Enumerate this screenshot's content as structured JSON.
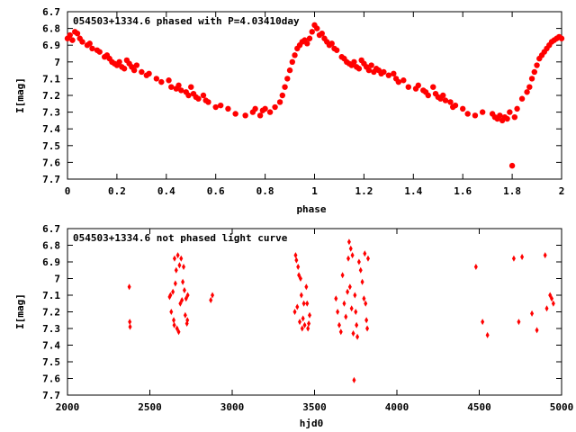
{
  "chart_data": [
    {
      "type": "scatter",
      "title": "054503+1334.6 phased with P=4.03410day",
      "xlabel": "phase",
      "ylabel": "I[mag]",
      "xlim": [
        0,
        2
      ],
      "ylim": [
        6.7,
        7.7
      ],
      "y_inverted": true,
      "grid": false,
      "xticks": [
        "0",
        "0.2",
        "0.4",
        "0.6",
        "0.8",
        "1",
        "1.2",
        "1.4",
        "1.6",
        "1.8",
        "2"
      ],
      "yticks": [
        "6.7",
        "6.8",
        "6.9",
        "7",
        "7.1",
        "7.2",
        "7.3",
        "7.4",
        "7.5",
        "7.6",
        "7.7"
      ],
      "color": "#ff0000",
      "marker": "filled-circle",
      "series": [
        {
          "x": [
            0.0,
            0.01,
            0.02,
            0.03,
            0.04,
            0.05,
            0.06,
            0.08,
            0.09,
            0.1,
            0.12,
            0.13,
            0.15,
            0.16,
            0.17,
            0.18,
            0.19,
            0.2,
            0.21,
            0.22,
            0.23,
            0.24,
            0.25,
            0.26,
            0.27,
            0.28,
            0.3,
            0.32,
            0.33,
            0.36,
            0.38,
            0.41,
            0.42,
            0.44,
            0.45,
            0.46,
            0.48,
            0.49,
            0.5,
            0.51,
            0.52,
            0.53,
            0.55,
            0.56,
            0.57,
            0.6,
            0.62,
            0.65,
            0.68,
            0.72,
            0.75,
            0.76,
            0.78,
            0.79,
            0.8,
            0.82,
            0.84,
            0.86,
            0.87,
            0.88,
            0.89,
            0.9,
            0.91,
            0.92,
            0.93,
            0.94,
            0.95,
            0.96,
            0.97,
            0.98,
            0.99,
            1.0,
            1.01,
            1.02,
            1.03,
            1.04,
            1.05,
            1.06,
            1.07,
            1.08,
            1.09,
            1.11,
            1.12,
            1.13,
            1.14,
            1.15,
            1.16,
            1.17,
            1.18,
            1.19,
            1.2,
            1.21,
            1.22,
            1.23,
            1.24,
            1.25,
            1.26,
            1.27,
            1.28,
            1.3,
            1.32,
            1.33,
            1.34,
            1.36,
            1.38,
            1.41,
            1.42,
            1.44,
            1.45,
            1.46,
            1.48,
            1.49,
            1.5,
            1.51,
            1.52,
            1.53,
            1.55,
            1.56,
            1.57,
            1.6,
            1.62,
            1.65,
            1.68,
            1.72,
            1.73,
            1.74,
            1.75,
            1.76,
            1.77,
            1.78,
            1.79,
            1.8,
            1.81,
            1.82,
            1.84,
            1.86,
            1.87,
            1.88,
            1.89,
            1.9,
            1.91,
            1.92,
            1.93,
            1.94,
            1.95,
            1.96,
            1.97,
            1.98,
            1.99,
            2.0
          ],
          "y": [
            6.86,
            6.84,
            6.87,
            6.82,
            6.83,
            6.86,
            6.88,
            6.9,
            6.89,
            6.92,
            6.93,
            6.94,
            6.97,
            6.96,
            6.98,
            7.0,
            7.01,
            7.02,
            7.0,
            7.03,
            7.04,
            6.99,
            7.01,
            7.03,
            7.05,
            7.02,
            7.06,
            7.08,
            7.07,
            7.1,
            7.12,
            7.11,
            7.15,
            7.16,
            7.14,
            7.17,
            7.18,
            7.2,
            7.15,
            7.19,
            7.21,
            7.22,
            7.2,
            7.23,
            7.24,
            7.27,
            7.26,
            7.28,
            7.31,
            7.32,
            7.3,
            7.28,
            7.32,
            7.29,
            7.28,
            7.3,
            7.27,
            7.24,
            7.2,
            7.15,
            7.1,
            7.05,
            7.0,
            6.96,
            6.92,
            6.9,
            6.88,
            6.87,
            6.89,
            6.86,
            6.82,
            6.78,
            6.8,
            6.84,
            6.83,
            6.86,
            6.88,
            6.9,
            6.89,
            6.92,
            6.93,
            6.97,
            6.98,
            7.0,
            7.01,
            7.02,
            7.0,
            7.03,
            7.04,
            6.99,
            7.01,
            7.03,
            7.05,
            7.02,
            7.06,
            7.04,
            7.05,
            7.07,
            7.06,
            7.08,
            7.07,
            7.1,
            7.12,
            7.11,
            7.15,
            7.16,
            7.14,
            7.17,
            7.18,
            7.2,
            7.15,
            7.19,
            7.21,
            7.22,
            7.2,
            7.23,
            7.24,
            7.27,
            7.26,
            7.28,
            7.31,
            7.32,
            7.3,
            7.31,
            7.33,
            7.34,
            7.32,
            7.35,
            7.33,
            7.34,
            7.3,
            7.62,
            7.33,
            7.28,
            7.22,
            7.18,
            7.15,
            7.1,
            7.06,
            7.02,
            6.98,
            6.96,
            6.94,
            6.92,
            6.9,
            6.88,
            6.87,
            6.86,
            6.85,
            6.86
          ]
        }
      ]
    },
    {
      "type": "scatter",
      "title": "054503+1334.6 not phased light curve",
      "xlabel": "hjd0",
      "ylabel": "I[mag]",
      "xlim": [
        2000,
        5000
      ],
      "ylim": [
        6.7,
        7.7
      ],
      "y_inverted": true,
      "grid": false,
      "xticks": [
        "2000",
        "2500",
        "3000",
        "3500",
        "4000",
        "4500",
        "5000"
      ],
      "yticks": [
        "6.7",
        "6.8",
        "6.9",
        "7",
        "7.1",
        "7.2",
        "7.3",
        "7.4",
        "7.5",
        "7.6",
        "7.7"
      ],
      "color": "#ff0000",
      "marker": "filled-diamond",
      "series": [
        {
          "x": [
            2375,
            2378,
            2380,
            2620,
            2625,
            2630,
            2640,
            2645,
            2648,
            2650,
            2655,
            2660,
            2665,
            2670,
            2675,
            2680,
            2685,
            2690,
            2695,
            2700,
            2705,
            2710,
            2715,
            2720,
            2725,
            2728,
            2730,
            2870,
            2880,
            3380,
            3385,
            3390,
            3395,
            3400,
            3405,
            3410,
            3415,
            3420,
            3425,
            3430,
            3435,
            3440,
            3450,
            3455,
            3460,
            3465,
            3470,
            3630,
            3640,
            3650,
            3660,
            3670,
            3680,
            3690,
            3700,
            3705,
            3710,
            3715,
            3720,
            3725,
            3730,
            3735,
            3740,
            3745,
            3750,
            3755,
            3760,
            3770,
            3780,
            3790,
            3800,
            3805,
            3810,
            3815,
            3820,
            3825,
            4480,
            4520,
            4550,
            4710,
            4740,
            4760,
            4820,
            4850,
            4900,
            4910,
            4930,
            4940,
            4950
          ],
          "y": [
            7.05,
            7.26,
            7.29,
            7.11,
            7.1,
            7.2,
            7.08,
            7.25,
            7.28,
            6.88,
            7.03,
            6.95,
            7.3,
            6.86,
            7.32,
            6.92,
            7.15,
            6.88,
            7.13,
            7.02,
            6.93,
            7.07,
            7.22,
            7.12,
            7.27,
            7.25,
            7.1,
            7.13,
            7.1,
            7.2,
            6.86,
            6.89,
            7.17,
            6.93,
            6.98,
            7.26,
            7.0,
            7.1,
            7.3,
            7.24,
            7.15,
            7.28,
            7.05,
            7.15,
            7.3,
            7.27,
            7.22,
            7.12,
            7.2,
            7.28,
            7.32,
            6.98,
            7.15,
            7.23,
            7.08,
            6.88,
            6.78,
            7.05,
            6.82,
            7.18,
            6.86,
            7.33,
            7.61,
            7.1,
            7.2,
            7.28,
            7.35,
            6.9,
            6.95,
            7.02,
            7.12,
            6.85,
            7.15,
            7.25,
            7.3,
            6.88,
            6.93,
            7.26,
            7.34,
            6.88,
            7.26,
            6.87,
            7.21,
            7.31,
            6.86,
            7.18,
            7.1,
            7.12,
            7.15
          ]
        }
      ]
    }
  ]
}
